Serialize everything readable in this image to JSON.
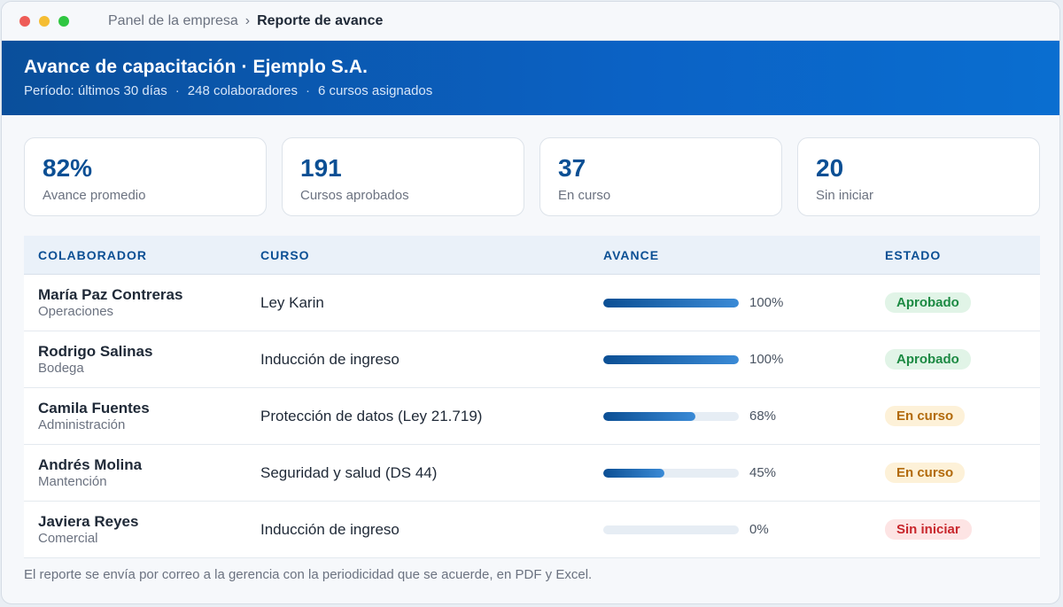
{
  "breadcrumb": {
    "parent": "Panel de la empresa",
    "separator": "›",
    "current": "Reporte de avance"
  },
  "window_controls": {
    "close_color": "#ee5c57",
    "minimize_color": "#f5bd33",
    "maximize_color": "#2fc641"
  },
  "header": {
    "title": "Avance de capacitación · Ejemplo S.A.",
    "period": "Período: últimos 30 días",
    "collaborators": "248 colaboradores",
    "courses": "6 cursos asignados",
    "separator": "·"
  },
  "stats": [
    {
      "value": "82%",
      "label": "Avance promedio"
    },
    {
      "value": "191",
      "label": "Cursos aprobados"
    },
    {
      "value": "37",
      "label": "En curso"
    },
    {
      "value": "20",
      "label": "Sin iniciar"
    }
  ],
  "table": {
    "headers": {
      "collaborator": "COLABORADOR",
      "course": "CURSO",
      "progress": "AVANCE",
      "status": "ESTADO"
    },
    "rows": [
      {
        "name": "María Paz Contreras",
        "dept": "Operaciones",
        "course": "Ley Karin",
        "progress": 100,
        "progress_label": "100%",
        "status": "Aprobado",
        "status_kind": "approved"
      },
      {
        "name": "Rodrigo Salinas",
        "dept": "Bodega",
        "course": "Inducción de ingreso",
        "progress": 100,
        "progress_label": "100%",
        "status": "Aprobado",
        "status_kind": "approved"
      },
      {
        "name": "Camila Fuentes",
        "dept": "Administración",
        "course": "Protección de datos (Ley 21.719)",
        "progress": 68,
        "progress_label": "68%",
        "status": "En curso",
        "status_kind": "in-progress"
      },
      {
        "name": "Andrés Molina",
        "dept": "Mantención",
        "course": "Seguridad y salud (DS 44)",
        "progress": 45,
        "progress_label": "45%",
        "status": "En curso",
        "status_kind": "in-progress"
      },
      {
        "name": "Javiera Reyes",
        "dept": "Comercial",
        "course": "Inducción de ingreso",
        "progress": 0,
        "progress_label": "0%",
        "status": "Sin iniciar",
        "status_kind": "not-started"
      }
    ]
  },
  "status_colors": {
    "approved": {
      "bg": "#e1f4e7",
      "fg": "#1c8a43"
    },
    "in-progress": {
      "bg": "#fdf1d8",
      "fg": "#b26a0b"
    },
    "not-started": {
      "bg": "#fde4e4",
      "fg": "#c8262c"
    }
  },
  "footer": {
    "note": "El reporte se envía por correo a la gerencia con la periodicidad que se acuerde, en PDF y Excel."
  }
}
